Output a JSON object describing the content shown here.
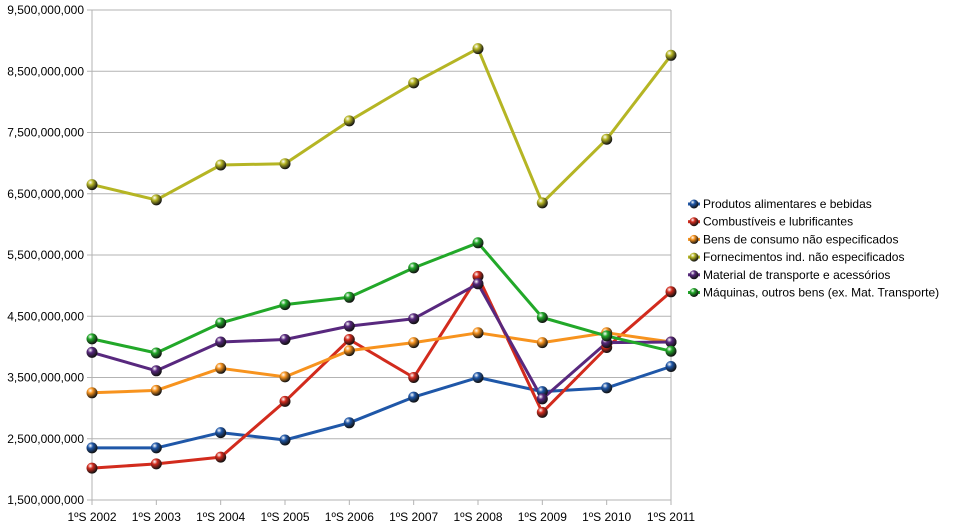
{
  "chart_data": {
    "type": "line",
    "title": "",
    "xlabel": "",
    "ylabel": "",
    "categories": [
      "1ºS 2002",
      "1ºS 2003",
      "1ºS 2004",
      "1ºS 2005",
      "1ºS 2006",
      "1ºS 2007",
      "1ºS 2008",
      "1ºS 2009",
      "1ºS 2010",
      "1ºS 2011"
    ],
    "ylim": [
      1500000000,
      9500000000
    ],
    "yticks": [
      {
        "value": 1500000000,
        "label": "1,500,000,000"
      },
      {
        "value": 2500000000,
        "label": "2,500,000,000"
      },
      {
        "value": 3500000000,
        "label": "3,500,000,000"
      },
      {
        "value": 4500000000,
        "label": "4,500,000,000"
      },
      {
        "value": 5500000000,
        "label": "5,500,000,000"
      },
      {
        "value": 6500000000,
        "label": "6,500,000,000"
      },
      {
        "value": 7500000000,
        "label": "7,500,000,000"
      },
      {
        "value": 8500000000,
        "label": "8,500,000,000"
      },
      {
        "value": 9500000000,
        "label": "9,500,000,000"
      }
    ],
    "grid": "horizontal",
    "legend_position": "right",
    "series": [
      {
        "name": "Produtos alimentares e bebidas",
        "color": "#1f57a8",
        "values": [
          2350000000,
          2350000000,
          2600000000,
          2480000000,
          2760000000,
          3180000000,
          3500000000,
          3270000000,
          3330000000,
          3680000000
        ]
      },
      {
        "name": "Combustíveis e lubrificantes",
        "color": "#d22b1d",
        "values": [
          2020000000,
          2090000000,
          2200000000,
          3110000000,
          4120000000,
          3500000000,
          5150000000,
          2930000000,
          3990000000,
          4900000000
        ]
      },
      {
        "name": "Bens de consumo não especificados",
        "color": "#f7931e",
        "values": [
          3250000000,
          3290000000,
          3650000000,
          3510000000,
          3940000000,
          4070000000,
          4230000000,
          4070000000,
          4230000000,
          4080000000
        ]
      },
      {
        "name": "Fornecimentos ind. não especificados",
        "color": "#b5b524",
        "values": [
          6650000000,
          6400000000,
          6970000000,
          6990000000,
          7690000000,
          8310000000,
          8870000000,
          6350000000,
          7390000000,
          8760000000
        ]
      },
      {
        "name": "Material de transporte e acessórios",
        "color": "#58287e",
        "values": [
          3910000000,
          3610000000,
          4080000000,
          4120000000,
          4340000000,
          4460000000,
          5030000000,
          3150000000,
          4070000000,
          4080000000
        ]
      },
      {
        "name": "Máquinas, outros bens (ex. Mat. Transporte)",
        "color": "#22a829",
        "values": [
          4130000000,
          3900000000,
          4390000000,
          4690000000,
          4810000000,
          5290000000,
          5700000000,
          4480000000,
          4180000000,
          3930000000
        ]
      }
    ]
  }
}
